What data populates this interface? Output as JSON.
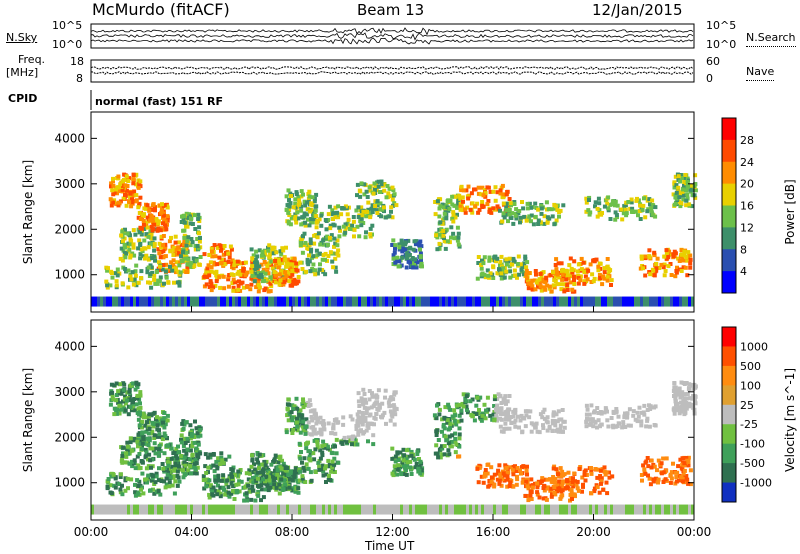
{
  "header": {
    "title": "McMurdo (fitACF)",
    "beam": "Beam 13",
    "date": "12/Jan/2015"
  },
  "noise_panel": {
    "left_label": "N.Sky",
    "right_label": "N.Search",
    "left_ticks": [
      "10^5",
      "10^0"
    ],
    "right_ticks": [
      "10^5",
      "10^0"
    ]
  },
  "freq_panel": {
    "left_label_1": "Freq.",
    "left_label_2": "[MHz]",
    "right_label": "Nave",
    "left_ticks": [
      "18",
      "8"
    ],
    "right_ticks": [
      "60",
      "0"
    ]
  },
  "cpid": {
    "label": "CPID",
    "value": "normal (fast) 151 RF"
  },
  "colors": {
    "power_scale": [
      "#0000ff",
      "#2a4fb0",
      "#3d8f6a",
      "#6cc04a",
      "#e8d000",
      "#ff8c00",
      "#ff4a00",
      "#ff0000"
    ],
    "velocity_scale": [
      "#1030c0",
      "#2f7050",
      "#3fa05a",
      "#70c040",
      "#bdbdbd",
      "#e0a030",
      "#ff8c10",
      "#ff5000",
      "#ff0000"
    ]
  },
  "chart_data": [
    {
      "type": "heatmap",
      "name": "power",
      "x_ticks": [
        "00:00",
        "04:00",
        "08:00",
        "12:00",
        "16:00",
        "20:00",
        "00:00"
      ],
      "xlim": [
        0,
        24
      ],
      "ylabel": "Slant Range [km]",
      "y_ticks": [
        1000,
        2000,
        3000,
        4000
      ],
      "ylim": [
        180,
        4580
      ],
      "colorbar_label": "Power [dB]",
      "colorbar_ticks": [
        4,
        8,
        12,
        16,
        20,
        24,
        28
      ],
      "clim": [
        0,
        30
      ]
    },
    {
      "type": "heatmap",
      "name": "velocity",
      "x_ticks": [
        "00:00",
        "04:00",
        "08:00",
        "12:00",
        "16:00",
        "20:00",
        "00:00"
      ],
      "xlim": [
        0,
        24
      ],
      "xlabel": "Time UT",
      "ylabel": "Slant Range [km]",
      "y_ticks": [
        1000,
        2000,
        3000,
        4000
      ],
      "ylim": [
        180,
        4580
      ],
      "colorbar_label": "Velocity [m s^-1]",
      "colorbar_ticks": [
        "1000",
        "500",
        "100",
        "25",
        "-25",
        "-100",
        "-500",
        "-1000"
      ]
    }
  ]
}
